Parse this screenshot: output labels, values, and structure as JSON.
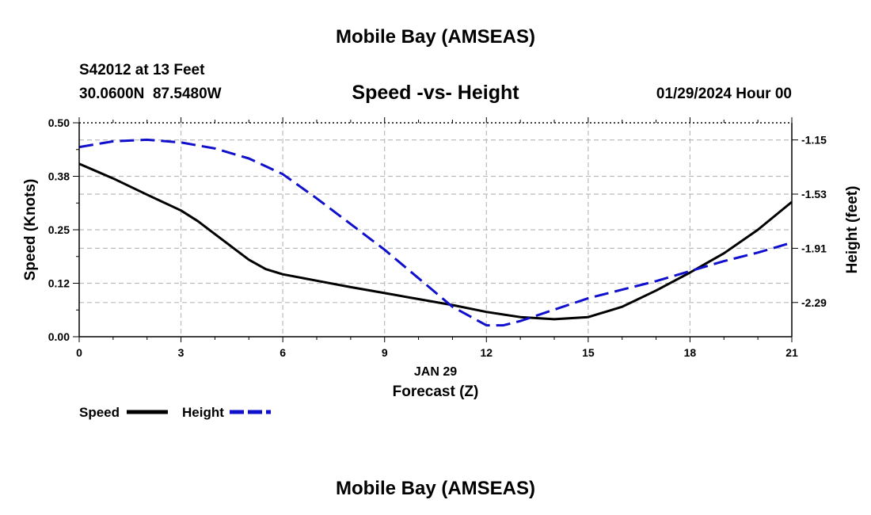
{
  "header": {
    "title": "Mobile Bay (AMSEAS)",
    "station": "S42012 at 13 Feet",
    "coords": "30.0600N  87.5480W",
    "subtitle": "Speed -vs- Height",
    "datetime": "01/29/2024 Hour 00"
  },
  "footer": {
    "title": "Mobile Bay (AMSEAS)"
  },
  "colors": {
    "speed": "#000000",
    "height": "#1010cc",
    "grid": "#bbbbbb"
  },
  "chart_data": {
    "type": "line",
    "title": "Speed -vs- Height",
    "xlabel": "Forecast (Z)",
    "date_label": "JAN 29",
    "ylabel": "Speed (Knots)",
    "y2label": "Height (feet)",
    "xlim": [
      0,
      21
    ],
    "ylim": [
      0,
      0.5
    ],
    "y2lim": [
      -2.53,
      -1.03
    ],
    "x_ticks": [
      0,
      3,
      6,
      9,
      12,
      15,
      18,
      21
    ],
    "x_tick_labels": [
      "0",
      "3",
      "6",
      "9",
      "12",
      "15",
      "18",
      "21"
    ],
    "y_ticks": [
      0,
      0.125,
      0.25,
      0.375,
      0.5
    ],
    "y_tick_labels": [
      "0.00",
      "0.12",
      "0.25",
      "0.38",
      "0.50"
    ],
    "y2_ticks": [
      -1.15,
      -1.53,
      -1.91,
      -2.29
    ],
    "y2_tick_labels": [
      "-1.15",
      "-1.53",
      "-1.91",
      "-2.29"
    ],
    "grid": true,
    "series": [
      {
        "name": "Speed",
        "axis": "left",
        "style": "solid",
        "x": [
          0,
          1,
          2,
          3,
          3.5,
          4,
          5,
          5.5,
          6,
          7,
          8,
          9,
          10,
          11,
          12,
          13,
          14,
          15,
          16,
          17,
          18,
          19,
          20,
          21
        ],
        "values": [
          0.404,
          0.37,
          0.332,
          0.295,
          0.27,
          0.24,
          0.18,
          0.158,
          0.146,
          0.131,
          0.116,
          0.102,
          0.088,
          0.074,
          0.058,
          0.046,
          0.041,
          0.046,
          0.07,
          0.108,
          0.15,
          0.195,
          0.25,
          0.315
        ]
      },
      {
        "name": "Height",
        "axis": "right",
        "style": "dashed",
        "x": [
          0,
          1,
          2,
          3,
          4,
          5,
          6,
          7,
          8,
          9,
          10,
          11,
          12,
          12.5,
          13,
          14,
          15,
          16,
          17,
          18,
          19,
          20,
          21
        ],
        "values": [
          -1.2,
          -1.16,
          -1.149,
          -1.168,
          -1.21,
          -1.28,
          -1.39,
          -1.56,
          -1.74,
          -1.92,
          -2.12,
          -2.32,
          -2.45,
          -2.45,
          -2.42,
          -2.34,
          -2.26,
          -2.2,
          -2.14,
          -2.07,
          -2.0,
          -1.94,
          -1.87
        ]
      }
    ],
    "legend": {
      "position": "bottom-left",
      "entries": [
        "Speed",
        "Height"
      ]
    }
  }
}
